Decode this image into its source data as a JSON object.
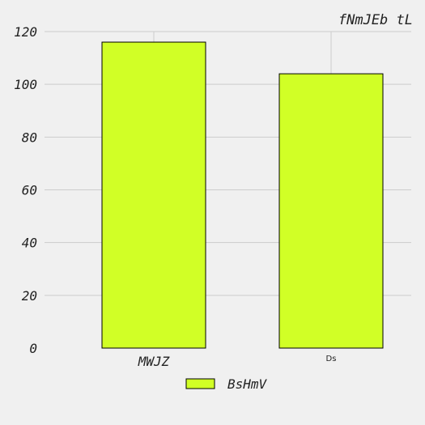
{
  "chart_data": {
    "type": "bar",
    "title": "fNmJEb  tL",
    "categories": [
      "MWJZ",
      "Ds"
    ],
    "series": [
      {
        "name": "BsHmV",
        "values": [
          116,
          104
        ]
      }
    ],
    "ylim": [
      0,
      120
    ],
    "yticks": [
      0,
      20,
      40,
      60,
      80,
      100,
      120
    ],
    "grid": true,
    "legend": "bottom-center",
    "colors": {
      "bar": "#d1ff26",
      "edge": "#000000",
      "grid": "#cccccc",
      "background": "#f0f0f0"
    }
  }
}
